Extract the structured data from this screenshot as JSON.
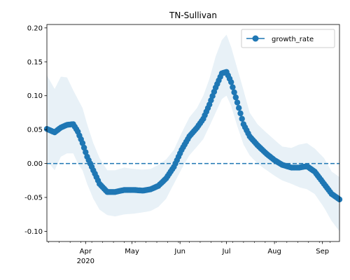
{
  "chart_data": {
    "type": "line",
    "title": "TN-Sullivan",
    "xlabel": "",
    "ylabel": "",
    "x_range": [
      "2020-03-07",
      "2020-09-12"
    ],
    "ylim": [
      -0.115,
      0.205
    ],
    "yticks": [
      -0.1,
      -0.05,
      0.0,
      0.05,
      0.1,
      0.15,
      0.2
    ],
    "xticks_major": [
      {
        "date": "2020-04-01",
        "label": "Apr",
        "sublabel": "2020"
      },
      {
        "date": "2020-05-01",
        "label": "May",
        "sublabel": ""
      },
      {
        "date": "2020-06-01",
        "label": "Jun",
        "sublabel": ""
      },
      {
        "date": "2020-07-01",
        "label": "Jul",
        "sublabel": ""
      },
      {
        "date": "2020-08-01",
        "label": "Aug",
        "sublabel": ""
      },
      {
        "date": "2020-09-01",
        "label": "Sep",
        "sublabel": ""
      }
    ],
    "grid": false,
    "legend_position": "top-right",
    "reference_line": {
      "y": 0.0,
      "style": "dashed",
      "color": "#1f77b4"
    },
    "series": [
      {
        "name": "growth_rate",
        "color": "#1f77b4",
        "marker": "circle",
        "band_color": "#1f77b4",
        "points": [
          {
            "x": "2020-03-07",
            "y": 0.051,
            "lo": 0.005,
            "hi": 0.13
          },
          {
            "x": "2020-03-12",
            "y": 0.046,
            "lo": -0.01,
            "hi": 0.11
          },
          {
            "x": "2020-03-16",
            "y": 0.053,
            "lo": 0.01,
            "hi": 0.128
          },
          {
            "x": "2020-03-20",
            "y": 0.057,
            "lo": 0.015,
            "hi": 0.127
          },
          {
            "x": "2020-03-24",
            "y": 0.058,
            "lo": 0.015,
            "hi": 0.108
          },
          {
            "x": "2020-03-27",
            "y": 0.047,
            "lo": 0.0,
            "hi": 0.095
          },
          {
            "x": "2020-03-30",
            "y": 0.03,
            "lo": -0.01,
            "hi": 0.082
          },
          {
            "x": "2020-04-02",
            "y": 0.01,
            "lo": -0.03,
            "hi": 0.058
          },
          {
            "x": "2020-04-06",
            "y": -0.01,
            "lo": -0.052,
            "hi": 0.03
          },
          {
            "x": "2020-04-10",
            "y": -0.03,
            "lo": -0.068,
            "hi": 0.008
          },
          {
            "x": "2020-04-15",
            "y": -0.042,
            "lo": -0.076,
            "hi": -0.01
          },
          {
            "x": "2020-04-20",
            "y": -0.042,
            "lo": -0.078,
            "hi": -0.01
          },
          {
            "x": "2020-04-26",
            "y": -0.039,
            "lo": -0.075,
            "hi": -0.006
          },
          {
            "x": "2020-05-02",
            "y": -0.039,
            "lo": -0.074,
            "hi": -0.008
          },
          {
            "x": "2020-05-08",
            "y": -0.04,
            "lo": -0.072,
            "hi": -0.009
          },
          {
            "x": "2020-05-13",
            "y": -0.038,
            "lo": -0.07,
            "hi": -0.008
          },
          {
            "x": "2020-05-18",
            "y": -0.033,
            "lo": -0.064,
            "hi": -0.002
          },
          {
            "x": "2020-05-23",
            "y": -0.022,
            "lo": -0.052,
            "hi": 0.006
          },
          {
            "x": "2020-05-28",
            "y": -0.005,
            "lo": -0.03,
            "hi": 0.02
          },
          {
            "x": "2020-06-02",
            "y": 0.02,
            "lo": -0.008,
            "hi": 0.045
          },
          {
            "x": "2020-06-07",
            "y": 0.04,
            "lo": 0.012,
            "hi": 0.068
          },
          {
            "x": "2020-06-12",
            "y": 0.053,
            "lo": 0.025,
            "hi": 0.082
          },
          {
            "x": "2020-06-16",
            "y": 0.066,
            "lo": 0.036,
            "hi": 0.1
          },
          {
            "x": "2020-06-20",
            "y": 0.087,
            "lo": 0.055,
            "hi": 0.125
          },
          {
            "x": "2020-06-24",
            "y": 0.112,
            "lo": 0.075,
            "hi": 0.158
          },
          {
            "x": "2020-06-28",
            "y": 0.133,
            "lo": 0.095,
            "hi": 0.182
          },
          {
            "x": "2020-07-01",
            "y": 0.135,
            "lo": 0.1,
            "hi": 0.19
          },
          {
            "x": "2020-07-04",
            "y": 0.12,
            "lo": 0.085,
            "hi": 0.172
          },
          {
            "x": "2020-07-08",
            "y": 0.09,
            "lo": 0.055,
            "hi": 0.14
          },
          {
            "x": "2020-07-12",
            "y": 0.058,
            "lo": 0.028,
            "hi": 0.108
          },
          {
            "x": "2020-07-16",
            "y": 0.04,
            "lo": 0.012,
            "hi": 0.075
          },
          {
            "x": "2020-07-21",
            "y": 0.027,
            "lo": 0.0,
            "hi": 0.058
          },
          {
            "x": "2020-07-27",
            "y": 0.014,
            "lo": -0.01,
            "hi": 0.045
          },
          {
            "x": "2020-08-01",
            "y": 0.005,
            "lo": -0.018,
            "hi": 0.035
          },
          {
            "x": "2020-08-06",
            "y": -0.002,
            "lo": -0.025,
            "hi": 0.025
          },
          {
            "x": "2020-08-12",
            "y": -0.006,
            "lo": -0.03,
            "hi": 0.023
          },
          {
            "x": "2020-08-17",
            "y": -0.006,
            "lo": -0.035,
            "hi": 0.028
          },
          {
            "x": "2020-08-22",
            "y": -0.004,
            "lo": -0.038,
            "hi": 0.03
          },
          {
            "x": "2020-08-27",
            "y": -0.012,
            "lo": -0.045,
            "hi": 0.022
          },
          {
            "x": "2020-09-02",
            "y": -0.03,
            "lo": -0.065,
            "hi": 0.008
          },
          {
            "x": "2020-09-07",
            "y": -0.045,
            "lo": -0.085,
            "hi": -0.012
          },
          {
            "x": "2020-09-12",
            "y": -0.053,
            "lo": -0.1,
            "hi": -0.02
          }
        ]
      }
    ]
  }
}
